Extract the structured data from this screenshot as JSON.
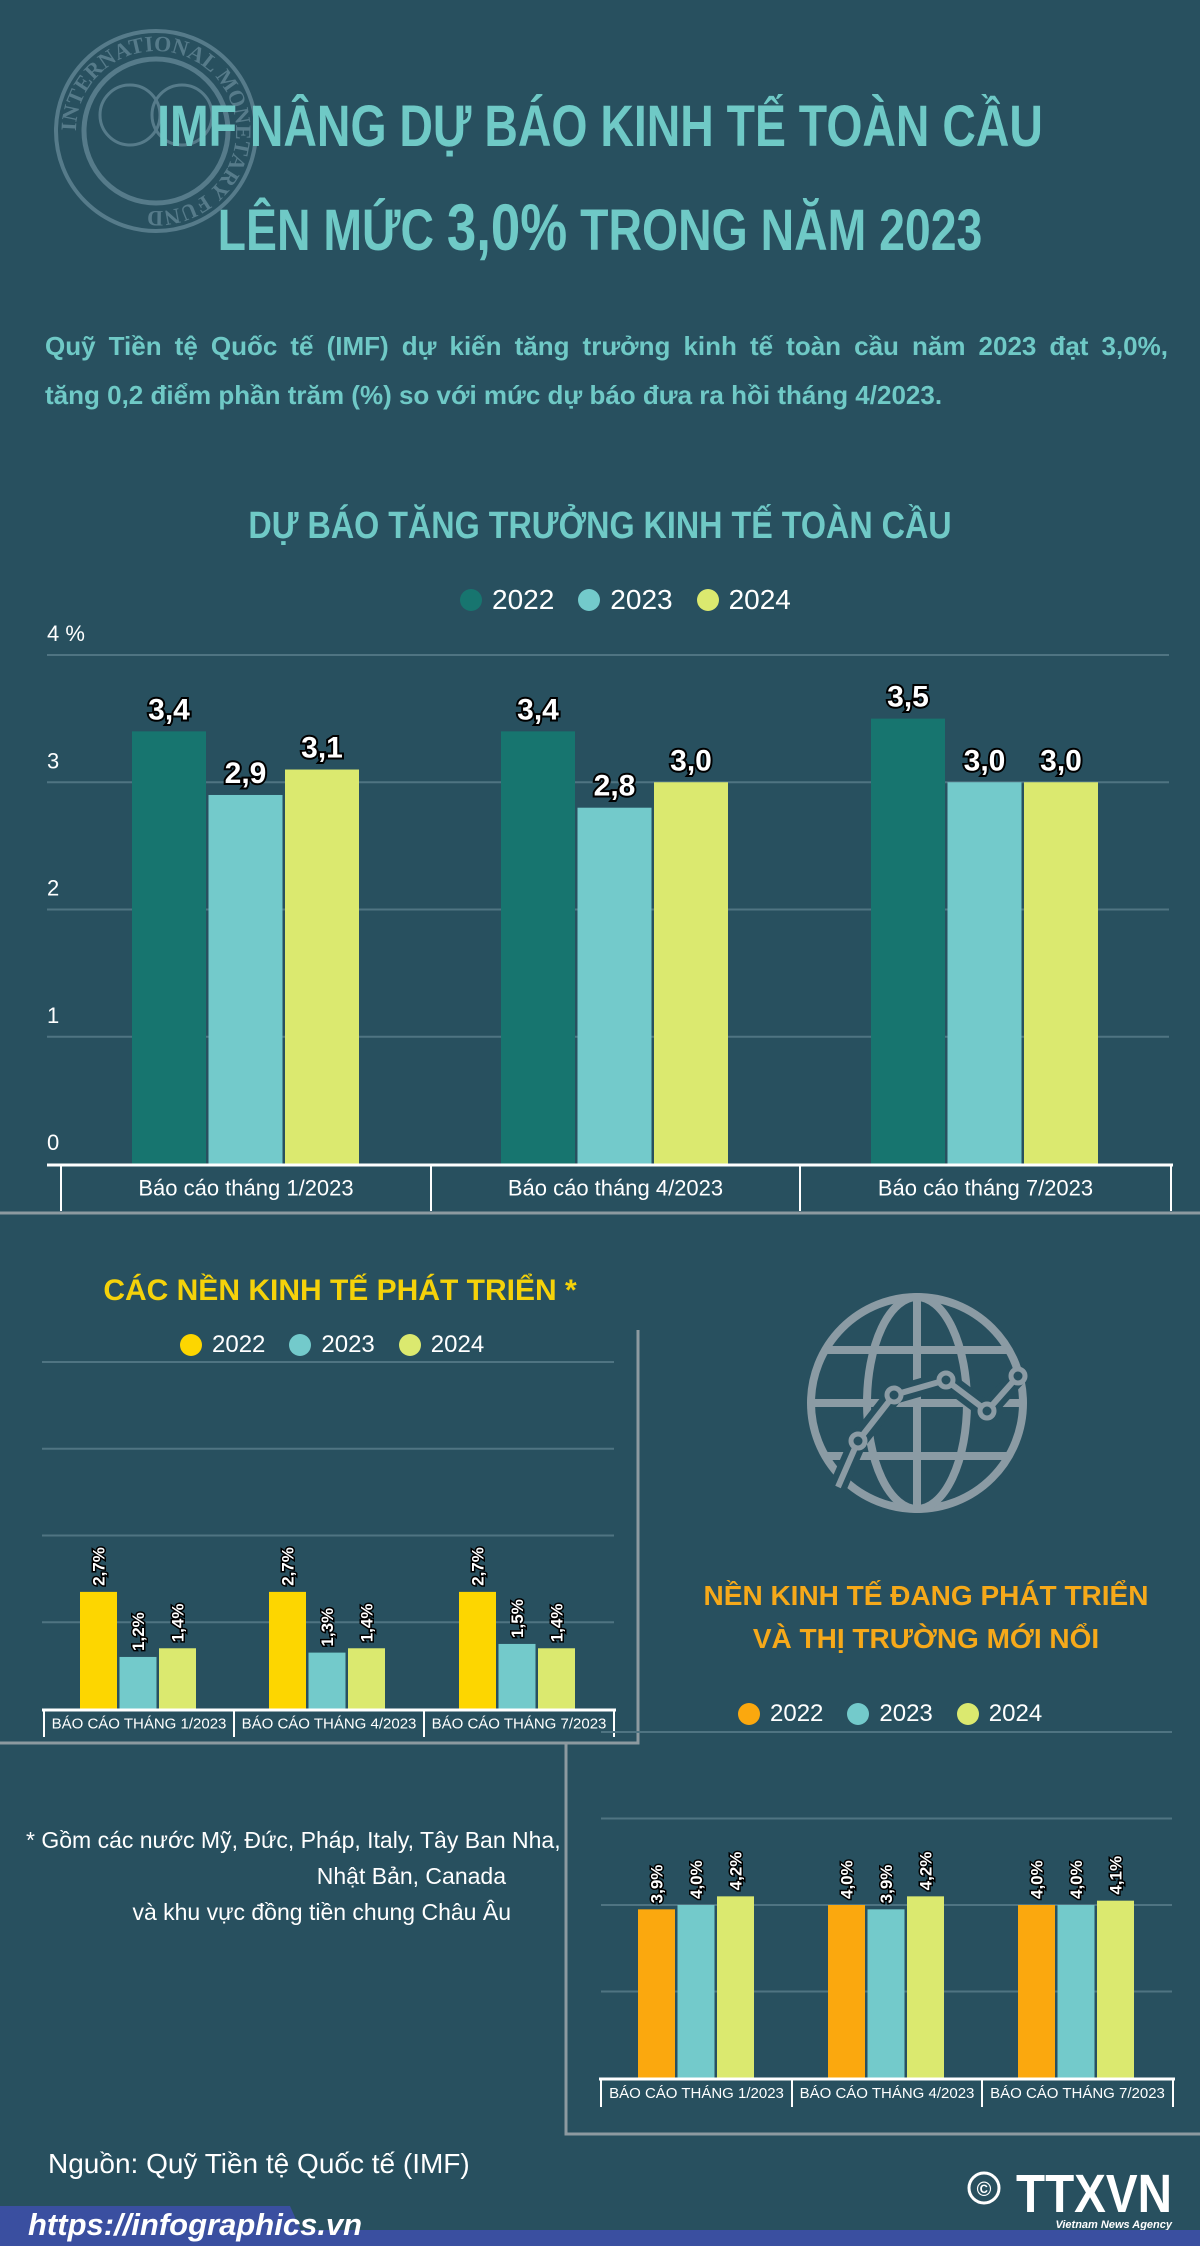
{
  "header": {
    "title_line1": "IMF NÂNG DỰ BÁO KINH TẾ TOÀN CẦU",
    "title_line2_pre": "LÊN MỨC ",
    "title_line2_value": "3,0%",
    "title_line2_post": " TRONG NĂM 2023",
    "seal_text": "INTERNATIONAL MONETARY FUND"
  },
  "intro": {
    "line1": "Quỹ Tiền tệ Quốc tế (IMF) dự kiến tăng trưởng kinh tế toàn cầu năm 2023 đạt 3,0%,",
    "line2": "tăng 0,2 điểm phần trăm (%) so với mức dự báo đưa ra hồi tháng 4/2023."
  },
  "colors": {
    "background": "#28505f",
    "title": "#6fc9c6",
    "series_2022_global": "#17756f",
    "series_2022_advanced": "#fdd600",
    "series_2022_emerging": "#fba80e",
    "series_2023": "#73cacb",
    "series_2024": "#dbe96f",
    "advanced_title": "#f5d20a",
    "emerging_title": "#f6a91a"
  },
  "chart_data": [
    {
      "id": "global",
      "type": "bar",
      "title": "DỰ BÁO TĂNG TRƯỞNG KINH TẾ TOÀN CẦU",
      "categories": [
        "Báo cáo tháng 1/2023",
        "Báo cáo tháng 4/2023",
        "Báo cáo tháng 7/2023"
      ],
      "series": [
        {
          "name": "2022",
          "values": [
            3.4,
            3.4,
            3.5
          ]
        },
        {
          "name": "2023",
          "values": [
            2.9,
            2.8,
            3.0
          ]
        },
        {
          "name": "2024",
          "values": [
            3.1,
            3.0,
            3.0
          ]
        }
      ],
      "y_ticks": [
        "0",
        "1",
        "2",
        "3",
        "4 %"
      ],
      "ylim": [
        0,
        4
      ],
      "ylabel": "%",
      "value_suffix": "",
      "grid": true,
      "legend": "top-center"
    },
    {
      "id": "advanced",
      "type": "bar",
      "title": "CÁC NỀN KINH TẾ PHÁT TRIỂN *",
      "categories": [
        "BÁO CÁO THÁNG 1/2023",
        "BÁO CÁO THÁNG 4/2023",
        "BÁO CÁO THÁNG 7/2023"
      ],
      "series": [
        {
          "name": "2022",
          "values": [
            2.7,
            2.7,
            2.7
          ]
        },
        {
          "name": "2023",
          "values": [
            1.2,
            1.3,
            1.5
          ]
        },
        {
          "name": "2024",
          "values": [
            1.4,
            1.4,
            1.4
          ]
        }
      ],
      "ylim": [
        0,
        8
      ],
      "value_suffix": "%",
      "grid": true,
      "legend": "top-center"
    },
    {
      "id": "emerging",
      "type": "bar",
      "title_line1": "NỀN KINH TẾ ĐANG PHÁT TRIỂN",
      "title_line2": "VÀ THỊ TRƯỜNG MỚI NỔI",
      "categories": [
        "BÁO CÁO THÁNG 1/2023",
        "BÁO CÁO THÁNG 4/2023",
        "BÁO CÁO THÁNG 7/2023"
      ],
      "series": [
        {
          "name": "2022",
          "values": [
            3.9,
            4.0,
            4.0
          ]
        },
        {
          "name": "2023",
          "values": [
            4.0,
            3.9,
            4.0
          ]
        },
        {
          "name": "2024",
          "values": [
            4.2,
            4.2,
            4.1
          ]
        }
      ],
      "ylim": [
        0,
        8
      ],
      "value_suffix": "%",
      "grid": true,
      "legend": "top-center"
    }
  ],
  "footnote": {
    "line1": "* Gồm các nước Mỹ, Đức, Pháp, Italy, Tây Ban Nha,",
    "line2": "Nhật Bản, Canada",
    "line3": "và khu vực đồng tiền chung Châu Âu"
  },
  "source": "Nguồn: Quỹ Tiền tệ Quốc tế (IMF)",
  "footer": {
    "url": "https://infographics.vn",
    "copyright_symbol": "©",
    "logo_text": "TTXVN",
    "logo_subtext": "Vietnam News Agency"
  },
  "icons": {
    "globe": "globe-chart-icon",
    "seal": "imf-seal-logo"
  }
}
